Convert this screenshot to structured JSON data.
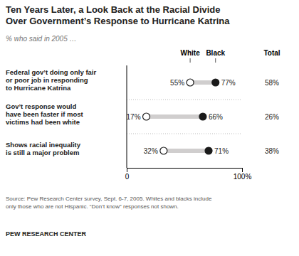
{
  "chart_data": {
    "type": "dumbbell",
    "title": "Ten Years Later, a Look Back at the Racial Divide\nOver Government’s Response to Hurricane Katrina",
    "subtitle": "% who said in 2005 …",
    "categories": [
      "Federal gov’t doing only fair\nor poor job in responding\nto Hurricane Katrina",
      "Gov’t response would\nhave been faster if most\nvictims had been white",
      "Shows racial inequality\nis still a major problem"
    ],
    "series": [
      {
        "name": "White",
        "color": "#ffffff",
        "values": [
          55,
          17,
          32
        ],
        "value_labels": [
          "55%",
          "17%",
          "32%"
        ]
      },
      {
        "name": "Black",
        "color": "#1a1a1a",
        "values": [
          77,
          66,
          71
        ],
        "value_labels": [
          "77%",
          "66%",
          "71%"
        ]
      },
      {
        "name": "Total",
        "type": "text",
        "values": [
          58,
          26,
          38
        ],
        "value_labels": [
          "58%",
          "26%",
          "38%"
        ]
      }
    ],
    "color": "#d0cece",
    "xlim": [
      0,
      100
    ],
    "xticks": [
      0,
      {
        "value": 100,
        "label": "100%"
      }
    ],
    "orientation": "horizontal",
    "data_labels": true,
    "tick_labels": "x",
    "grid": false,
    "source": "Source: Pew Research Center survey, Sept. 6-7, 2005. Whites and blacks include\nonly those who are not Hispanic. “Don’t know” responses not shown.",
    "footer": "PEW RESEARCH CENTER"
  }
}
